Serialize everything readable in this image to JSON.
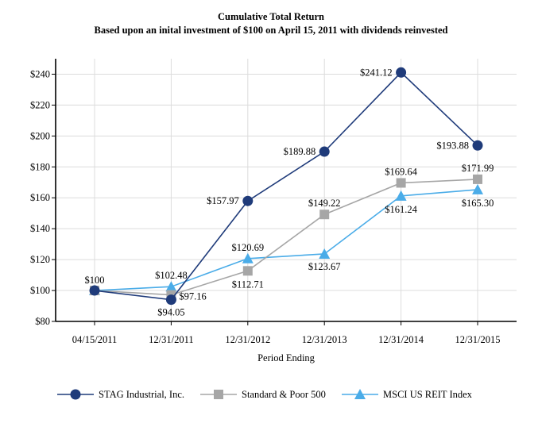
{
  "chart_data": {
    "type": "line",
    "title": "Cumulative Total Return",
    "subtitle": "Based upon an inital investment of $100 on April 15, 2011 with dividends reinvested",
    "xlabel": "Period Ending",
    "ylabel": "",
    "categories": [
      "04/15/2011",
      "12/31/2011",
      "12/31/2012",
      "12/31/2013",
      "12/31/2014",
      "12/31/2015"
    ],
    "ylim": [
      80,
      250
    ],
    "yticks": [
      80,
      100,
      120,
      140,
      160,
      180,
      200,
      220,
      240
    ],
    "ytick_labels": [
      "$80",
      "$100",
      "$120",
      "$140",
      "$160",
      "$180",
      "$200",
      "$220",
      "$240"
    ],
    "grid": true,
    "legend_position": "bottom",
    "series": [
      {
        "name": "STAG Industrial, Inc.",
        "color": "#1f3b7a",
        "marker": "circle",
        "values": [
          100,
          94.05,
          157.97,
          189.88,
          241.12,
          193.88
        ],
        "labels": [
          "$100",
          "$94.05",
          "$157.97",
          "$189.88",
          "$241.12",
          "$193.88"
        ]
      },
      {
        "name": "Standard & Poor 500",
        "color": "#a6a6a6",
        "marker": "square",
        "values": [
          100,
          97.16,
          112.71,
          149.22,
          169.64,
          171.99
        ],
        "labels": [
          "",
          "$97.16",
          "$112.71",
          "$149.22",
          "$169.64",
          "$171.99"
        ]
      },
      {
        "name": "MSCI US REIT Index",
        "color": "#4aace8",
        "marker": "triangle",
        "values": [
          100,
          102.48,
          120.69,
          123.67,
          161.24,
          165.3
        ],
        "labels": [
          "",
          "$102.48",
          "$120.69",
          "$123.67",
          "$161.24",
          "$165.30"
        ]
      }
    ]
  }
}
